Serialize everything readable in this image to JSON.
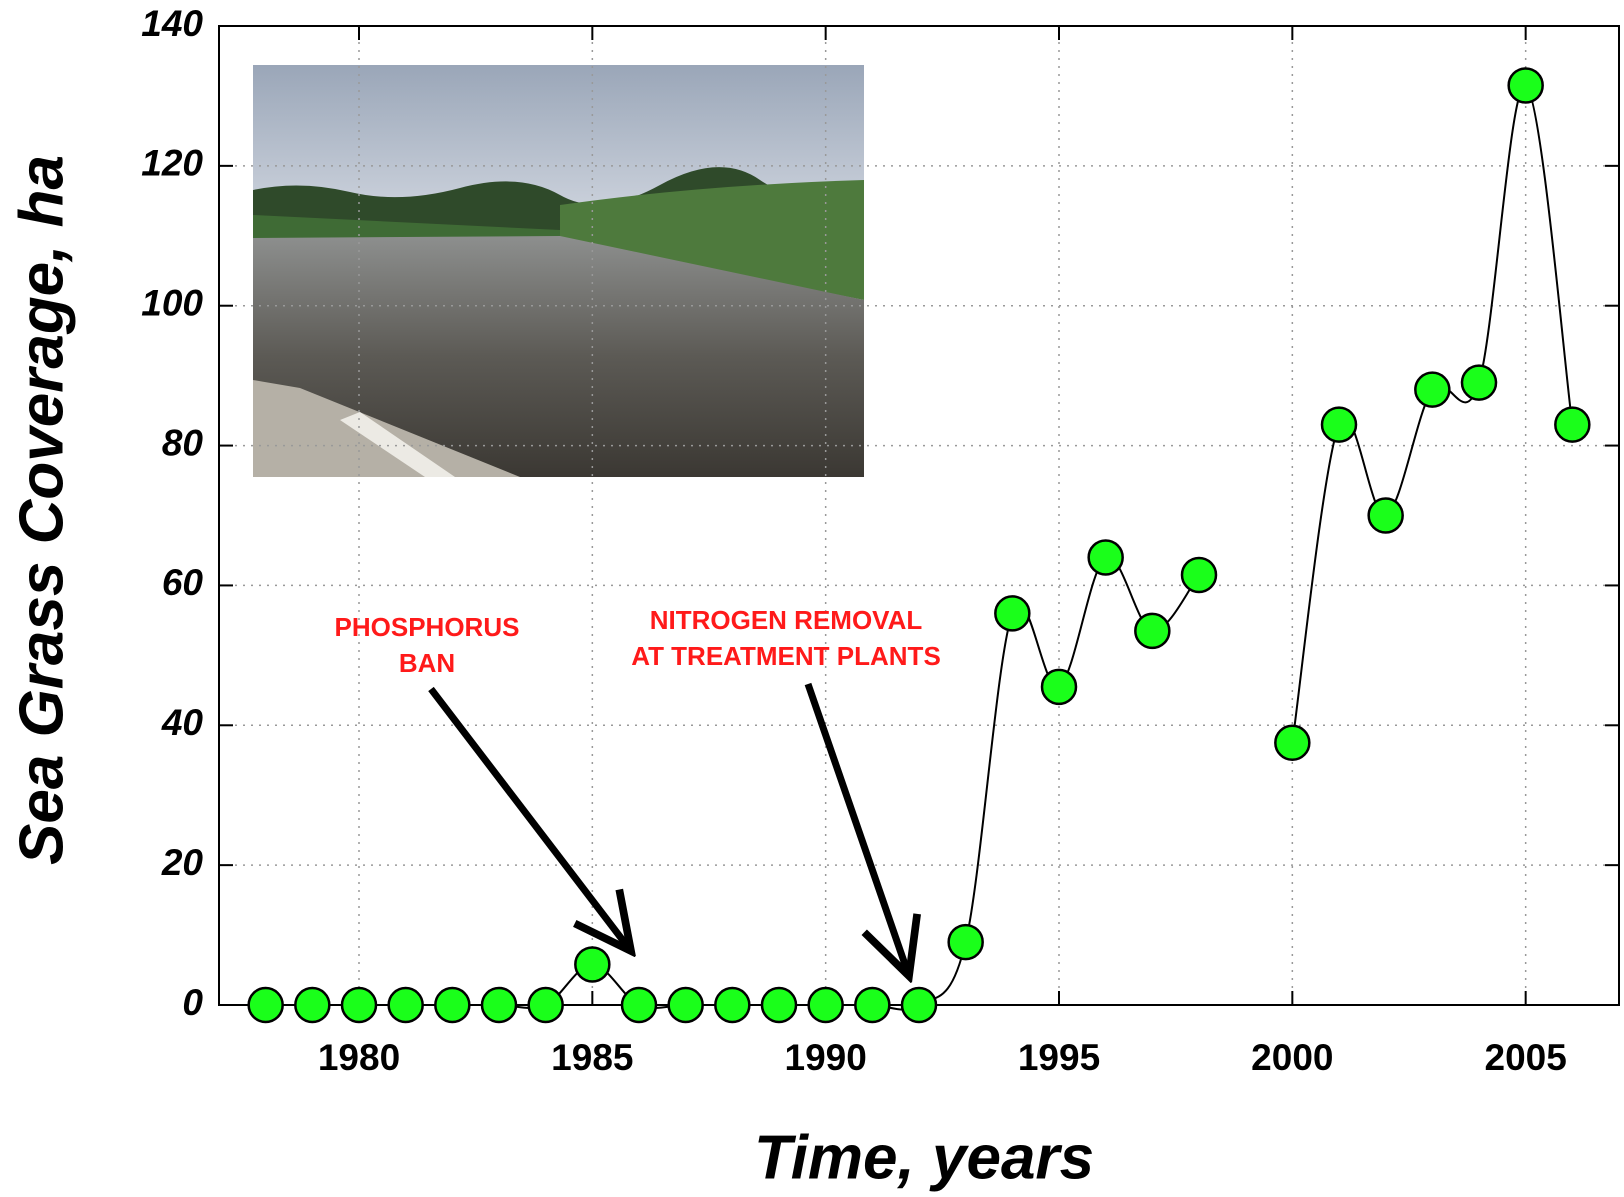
{
  "chart_data": {
    "type": "line",
    "x_label": "Time, years",
    "y_label": "Sea Grass Coverage, ha",
    "x": [
      1978,
      1979,
      1980,
      1981,
      1982,
      1983,
      1984,
      1985,
      1986,
      1987,
      1988,
      1989,
      1990,
      1991,
      1992,
      1993,
      1994,
      1995,
      1996,
      1997,
      1998,
      1999,
      2000,
      2001,
      2002,
      2003,
      2004,
      2005,
      2006
    ],
    "values": [
      0,
      0,
      0,
      0,
      0,
      0,
      0,
      5.8,
      0,
      0,
      0,
      0,
      0,
      0,
      0,
      9,
      56,
      45.5,
      64,
      53.5,
      61.5,
      null,
      37.5,
      83,
      70,
      88,
      89,
      131.5,
      83
    ],
    "color": "#1aff1a",
    "xlim": [
      1977,
      2007
    ],
    "xticks": [
      1980,
      1985,
      1990,
      1995,
      2000,
      2005
    ],
    "ylim": [
      0,
      140
    ],
    "yticks": [
      0,
      20,
      40,
      60,
      80,
      100,
      120,
      140
    ],
    "grid": true,
    "annotations": [
      {
        "lines": [
          "PHOSPHORUS",
          "BAN"
        ]
      },
      {
        "lines": [
          "NITROGEN REMOVAL",
          "AT TREATMENT PLANTS"
        ]
      }
    ]
  }
}
